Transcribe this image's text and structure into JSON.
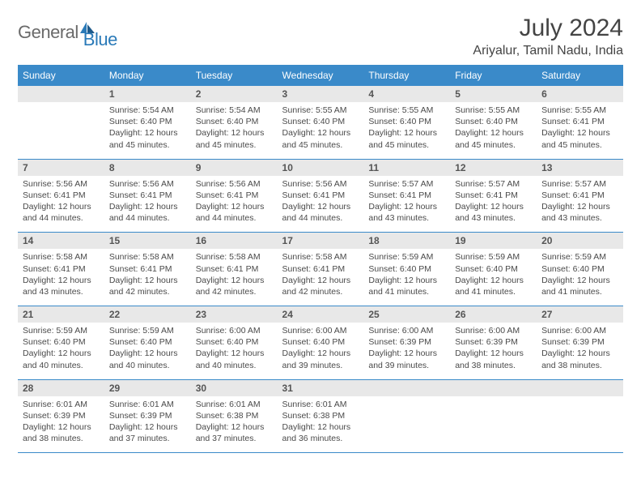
{
  "logo": {
    "general": "General",
    "blue": "Blue"
  },
  "title": "July 2024",
  "location": "Ariyalur, Tamil Nadu, India",
  "day_headers": [
    "Sunday",
    "Monday",
    "Tuesday",
    "Wednesday",
    "Thursday",
    "Friday",
    "Saturday"
  ],
  "colors": {
    "header_bg": "#3a8ac9",
    "header_text": "#ffffff",
    "daynum_bg": "#e8e8e8",
    "border": "#3a8ac9"
  },
  "weeks": [
    [
      null,
      {
        "n": "1",
        "sr": "5:54 AM",
        "ss": "6:40 PM",
        "dl": "12 hours and 45 minutes."
      },
      {
        "n": "2",
        "sr": "5:54 AM",
        "ss": "6:40 PM",
        "dl": "12 hours and 45 minutes."
      },
      {
        "n": "3",
        "sr": "5:55 AM",
        "ss": "6:40 PM",
        "dl": "12 hours and 45 minutes."
      },
      {
        "n": "4",
        "sr": "5:55 AM",
        "ss": "6:40 PM",
        "dl": "12 hours and 45 minutes."
      },
      {
        "n": "5",
        "sr": "5:55 AM",
        "ss": "6:40 PM",
        "dl": "12 hours and 45 minutes."
      },
      {
        "n": "6",
        "sr": "5:55 AM",
        "ss": "6:41 PM",
        "dl": "12 hours and 45 minutes."
      }
    ],
    [
      {
        "n": "7",
        "sr": "5:56 AM",
        "ss": "6:41 PM",
        "dl": "12 hours and 44 minutes."
      },
      {
        "n": "8",
        "sr": "5:56 AM",
        "ss": "6:41 PM",
        "dl": "12 hours and 44 minutes."
      },
      {
        "n": "9",
        "sr": "5:56 AM",
        "ss": "6:41 PM",
        "dl": "12 hours and 44 minutes."
      },
      {
        "n": "10",
        "sr": "5:56 AM",
        "ss": "6:41 PM",
        "dl": "12 hours and 44 minutes."
      },
      {
        "n": "11",
        "sr": "5:57 AM",
        "ss": "6:41 PM",
        "dl": "12 hours and 43 minutes."
      },
      {
        "n": "12",
        "sr": "5:57 AM",
        "ss": "6:41 PM",
        "dl": "12 hours and 43 minutes."
      },
      {
        "n": "13",
        "sr": "5:57 AM",
        "ss": "6:41 PM",
        "dl": "12 hours and 43 minutes."
      }
    ],
    [
      {
        "n": "14",
        "sr": "5:58 AM",
        "ss": "6:41 PM",
        "dl": "12 hours and 43 minutes."
      },
      {
        "n": "15",
        "sr": "5:58 AM",
        "ss": "6:41 PM",
        "dl": "12 hours and 42 minutes."
      },
      {
        "n": "16",
        "sr": "5:58 AM",
        "ss": "6:41 PM",
        "dl": "12 hours and 42 minutes."
      },
      {
        "n": "17",
        "sr": "5:58 AM",
        "ss": "6:41 PM",
        "dl": "12 hours and 42 minutes."
      },
      {
        "n": "18",
        "sr": "5:59 AM",
        "ss": "6:40 PM",
        "dl": "12 hours and 41 minutes."
      },
      {
        "n": "19",
        "sr": "5:59 AM",
        "ss": "6:40 PM",
        "dl": "12 hours and 41 minutes."
      },
      {
        "n": "20",
        "sr": "5:59 AM",
        "ss": "6:40 PM",
        "dl": "12 hours and 41 minutes."
      }
    ],
    [
      {
        "n": "21",
        "sr": "5:59 AM",
        "ss": "6:40 PM",
        "dl": "12 hours and 40 minutes."
      },
      {
        "n": "22",
        "sr": "5:59 AM",
        "ss": "6:40 PM",
        "dl": "12 hours and 40 minutes."
      },
      {
        "n": "23",
        "sr": "6:00 AM",
        "ss": "6:40 PM",
        "dl": "12 hours and 40 minutes."
      },
      {
        "n": "24",
        "sr": "6:00 AM",
        "ss": "6:40 PM",
        "dl": "12 hours and 39 minutes."
      },
      {
        "n": "25",
        "sr": "6:00 AM",
        "ss": "6:39 PM",
        "dl": "12 hours and 39 minutes."
      },
      {
        "n": "26",
        "sr": "6:00 AM",
        "ss": "6:39 PM",
        "dl": "12 hours and 38 minutes."
      },
      {
        "n": "27",
        "sr": "6:00 AM",
        "ss": "6:39 PM",
        "dl": "12 hours and 38 minutes."
      }
    ],
    [
      {
        "n": "28",
        "sr": "6:01 AM",
        "ss": "6:39 PM",
        "dl": "12 hours and 38 minutes."
      },
      {
        "n": "29",
        "sr": "6:01 AM",
        "ss": "6:39 PM",
        "dl": "12 hours and 37 minutes."
      },
      {
        "n": "30",
        "sr": "6:01 AM",
        "ss": "6:38 PM",
        "dl": "12 hours and 37 minutes."
      },
      {
        "n": "31",
        "sr": "6:01 AM",
        "ss": "6:38 PM",
        "dl": "12 hours and 36 minutes."
      },
      null,
      null,
      null
    ]
  ],
  "labels": {
    "sunrise": "Sunrise: ",
    "sunset": "Sunset: ",
    "daylight": "Daylight: "
  }
}
